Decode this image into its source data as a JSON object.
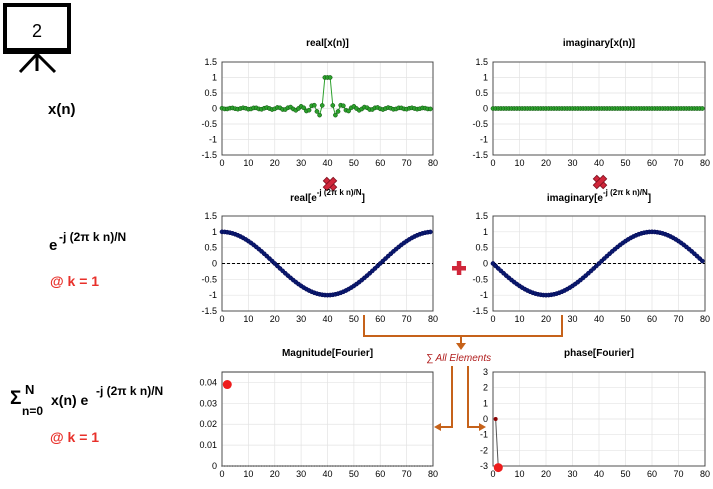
{
  "slide_number": "2",
  "left_labels": {
    "xn": "x(n)",
    "kernel_base": "e",
    "kernel_exp": "-j (2π k n)/N",
    "at_k1_top": "@ k = 1",
    "sum_symbol": "Σ",
    "sum_upper": "N",
    "sum_lower": "n=0",
    "sum_body": "x(n) e",
    "sum_exp": "-j (2π k n)/N",
    "at_k1_bottom": "@ k = 1"
  },
  "operators": {
    "multiply_icon": "multiply-icon",
    "plus_icon": "plus-icon",
    "sum_caption": "∑ All Elements"
  },
  "colors": {
    "green_marker": "#2ca02c",
    "navy_marker": "#0a1a6e",
    "red_accent": "#e8302a",
    "orange_arrow": "#c6621a",
    "dark_red_marker": "#8b0000"
  },
  "chart_data": [
    {
      "id": "real_x",
      "type": "line",
      "title": "real[x(n)]",
      "xlim": [
        0,
        80
      ],
      "ylim": [
        -1.5,
        1.5
      ],
      "xticks": [
        "0",
        "10",
        "20",
        "30",
        "40",
        "50",
        "60",
        "70",
        "80"
      ],
      "yticks": [
        "1.5",
        "1",
        "0.5",
        "0",
        "-0.5",
        "-1",
        "-1.5"
      ],
      "grid": true,
      "series": [
        {
          "values_fn": "sinc",
          "color": "#2ca02c",
          "marker": "circle"
        }
      ],
      "n_points": 80
    },
    {
      "id": "imag_x",
      "type": "line",
      "title": "imaginary[x(n)]",
      "xlim": [
        0,
        80
      ],
      "ylim": [
        -1.5,
        1.5
      ],
      "xticks": [
        "0",
        "10",
        "20",
        "30",
        "40",
        "50",
        "60",
        "70",
        "80"
      ],
      "yticks": [
        "1.5",
        "1",
        "0.5",
        "0",
        "-0.5",
        "-1",
        "-1.5"
      ],
      "grid": true,
      "series": [
        {
          "values_fn": "zero",
          "color": "#2ca02c",
          "marker": "circle"
        }
      ],
      "n_points": 80
    },
    {
      "id": "real_e",
      "type": "line",
      "title_base": "real[e",
      "title_exp": "-j (2π k n)/N",
      "title_end": "]",
      "xlim": [
        0,
        80
      ],
      "ylim": [
        -1.5,
        1.5
      ],
      "xticks": [
        "0",
        "10",
        "20",
        "30",
        "40",
        "50",
        "60",
        "70",
        "80"
      ],
      "yticks": [
        "1.5",
        "1",
        "0.5",
        "0",
        "-0.5",
        "-1",
        "-1.5"
      ],
      "grid": true,
      "zero_dashed": true,
      "series": [
        {
          "values_fn": "cos",
          "color": "#0a1a6e",
          "marker": "circle"
        }
      ],
      "n_points": 80
    },
    {
      "id": "imag_e",
      "type": "line",
      "title_base": "imaginary[e",
      "title_exp": "-j (2π k n)/N",
      "title_end": "]",
      "xlim": [
        0,
        80
      ],
      "ylim": [
        -1.5,
        1.5
      ],
      "xticks": [
        "0",
        "10",
        "20",
        "30",
        "40",
        "50",
        "60",
        "70",
        "80"
      ],
      "yticks": [
        "1.5",
        "1",
        "0.5",
        "0",
        "-0.5",
        "-1",
        "-1.5"
      ],
      "grid": true,
      "zero_dashed": true,
      "series": [
        {
          "values_fn": "negsin",
          "color": "#0a1a6e",
          "marker": "circle"
        }
      ],
      "n_points": 80
    },
    {
      "id": "magnitude",
      "type": "scatter",
      "title": "Magnitude[Fourier]",
      "xlim": [
        0,
        80
      ],
      "ylim": [
        0,
        0.045
      ],
      "xticks": [
        "0",
        "10",
        "20",
        "30",
        "40",
        "50",
        "60",
        "70",
        "80"
      ],
      "yticks": [
        "0.04",
        "0.03",
        "0.02",
        "0.01",
        "0"
      ],
      "grid": true,
      "points": [
        {
          "x": 2,
          "y": 0.039
        }
      ],
      "baseline_markers": true
    },
    {
      "id": "phase",
      "type": "line",
      "title": "phase[Fourier]",
      "xlim": [
        0,
        80
      ],
      "ylim": [
        -3,
        3
      ],
      "xticks": [
        "0",
        "10",
        "20",
        "30",
        "40",
        "50",
        "60",
        "70",
        "80"
      ],
      "yticks": [
        "3",
        "2",
        "1",
        "0",
        "-1",
        "-2",
        "-3"
      ],
      "grid": true,
      "points": [
        {
          "x": 1,
          "y": 0
        },
        {
          "x": 2,
          "y": -3.14
        }
      ]
    }
  ]
}
